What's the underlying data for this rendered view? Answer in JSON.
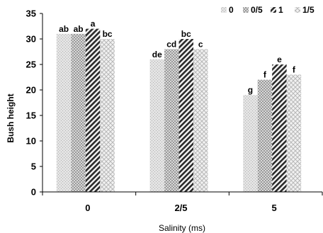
{
  "chart_data": {
    "type": "bar",
    "title": "",
    "xlabel": "Salinity (ms)",
    "ylabel": "Bush height",
    "ylim": [
      0,
      35
    ],
    "yticks": [
      0,
      5,
      10,
      15,
      20,
      25,
      30,
      35
    ],
    "categories": [
      "0",
      "2/5",
      "5"
    ],
    "grid": false,
    "legend_position": "top-right",
    "series": [
      {
        "name": "0",
        "values": [
          31,
          26,
          19
        ],
        "labels": [
          "ab",
          "de",
          "g"
        ],
        "pattern": "light-dots"
      },
      {
        "name": "0/5",
        "values": [
          31,
          28,
          22
        ],
        "labels": [
          "ab",
          "cd",
          "f"
        ],
        "pattern": "checker"
      },
      {
        "name": "1",
        "values": [
          32,
          30,
          25
        ],
        "labels": [
          "a",
          "bc",
          "e"
        ],
        "pattern": "diagonal"
      },
      {
        "name": "1/5",
        "values": [
          30,
          28,
          23
        ],
        "labels": [
          "bc",
          "c",
          "f"
        ],
        "pattern": "cross"
      }
    ]
  }
}
